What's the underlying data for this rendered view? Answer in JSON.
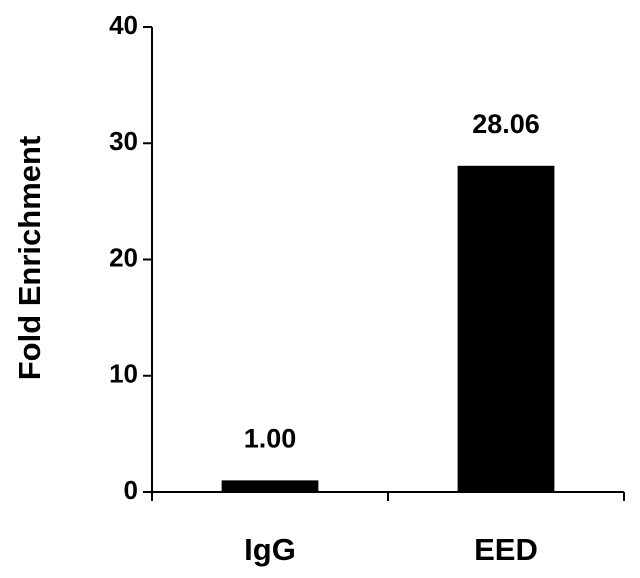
{
  "chart_data": {
    "type": "bar",
    "y_label": "Fold Enrichment",
    "categories": [
      "IgG",
      "EED"
    ],
    "values": [
      1.0,
      28.06
    ],
    "value_labels": [
      "1.00",
      "28.06"
    ],
    "color": "#000000",
    "ylim": [
      0,
      40
    ],
    "yticks": [
      0,
      10,
      20,
      30,
      40
    ],
    "grid": false
  }
}
